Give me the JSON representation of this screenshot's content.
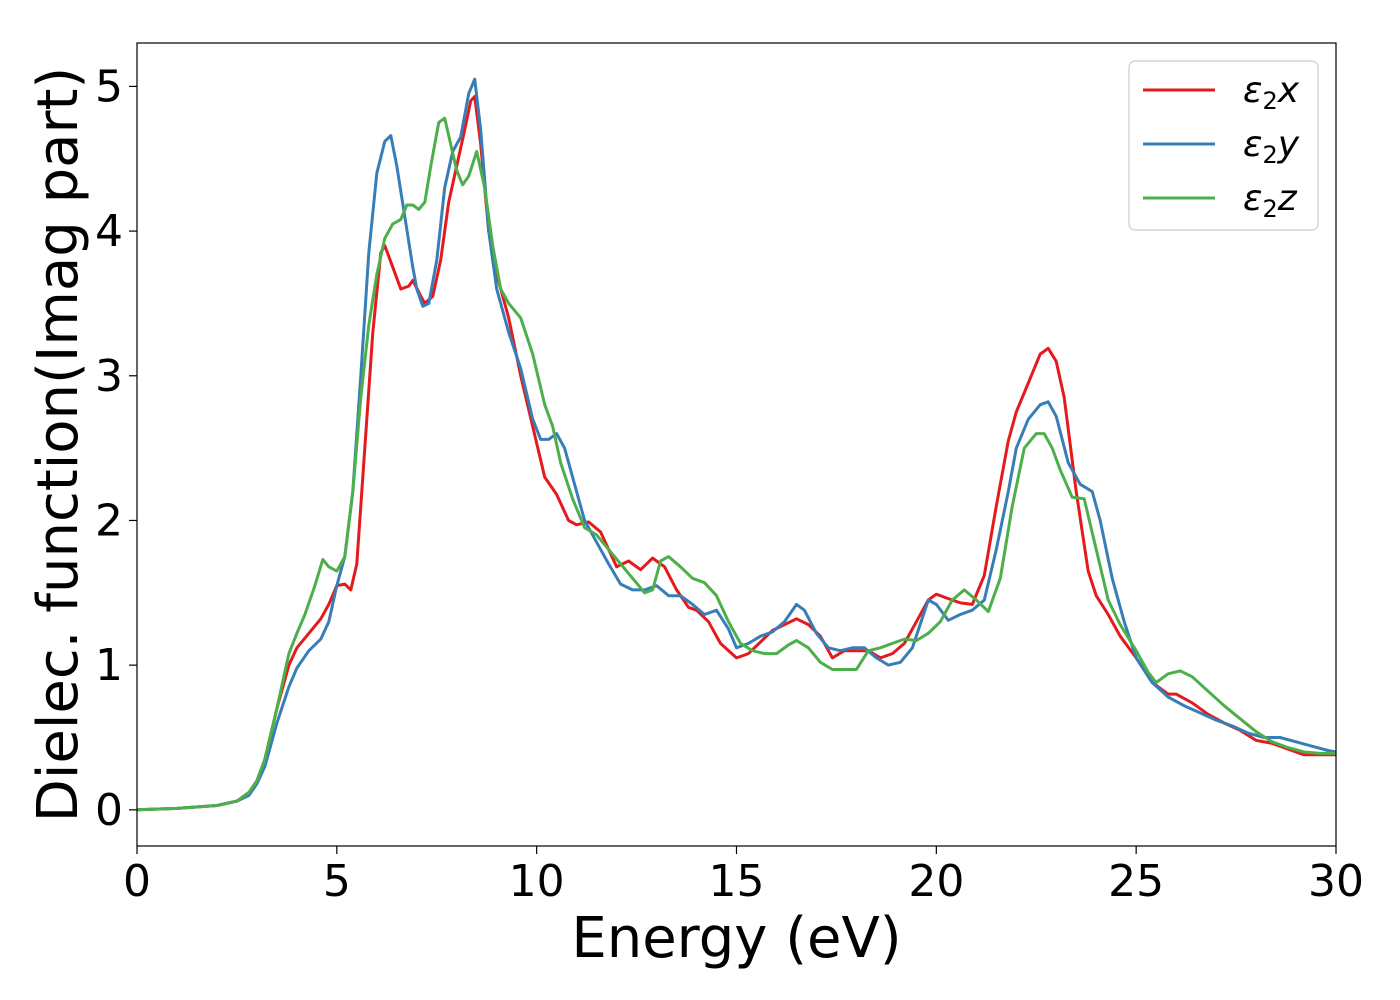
{
  "chart_data": {
    "type": "line",
    "title": "",
    "xlabel": "Energy (eV)",
    "ylabel": "Dielec. function(Imag part)",
    "xlim": [
      0,
      30
    ],
    "ylim": [
      -0.25,
      5.3
    ],
    "xticks": [
      0,
      5,
      10,
      15,
      20,
      25,
      30
    ],
    "xtick_labels": [
      "0",
      "5",
      "10",
      "15",
      "20",
      "25",
      "30"
    ],
    "yticks": [
      0,
      1,
      2,
      3,
      4,
      5
    ],
    "ytick_labels": [
      "0",
      "1",
      "2",
      "3",
      "4",
      "5"
    ],
    "grid": false,
    "legend_position": "top-right",
    "series": [
      {
        "name": "ε2x",
        "legend": {
          "base": "ε",
          "sub": "2",
          "suffix": "x"
        },
        "color": "#e41a1c",
        "x": [
          0,
          1,
          2,
          2.5,
          2.8,
          3,
          3.2,
          3.5,
          3.8,
          4,
          4.3,
          4.6,
          4.8,
          5.0,
          5.2,
          5.35,
          5.5,
          5.7,
          5.9,
          6.1,
          6.2,
          6.4,
          6.6,
          6.8,
          6.9,
          7.1,
          7.2,
          7.4,
          7.6,
          7.8,
          8.0,
          8.2,
          8.35,
          8.45,
          8.6,
          8.8,
          9.0,
          9.3,
          9.6,
          9.9,
          10.2,
          10.5,
          10.8,
          11.0,
          11.3,
          11.6,
          11.8,
          12.0,
          12.3,
          12.6,
          12.9,
          13.2,
          13.5,
          13.8,
          14.0,
          14.3,
          14.6,
          15.0,
          15.3,
          15.6,
          15.9,
          16.2,
          16.5,
          16.8,
          17.1,
          17.4,
          17.7,
          18.0,
          18.3,
          18.6,
          18.9,
          19.2,
          19.5,
          19.8,
          20.0,
          20.3,
          20.6,
          20.9,
          21.2,
          21.5,
          21.8,
          22.0,
          22.3,
          22.6,
          22.8,
          23.0,
          23.2,
          23.5,
          23.8,
          24.0,
          24.3,
          24.6,
          25.0,
          25.4,
          25.8,
          26.0,
          26.4,
          26.8,
          27.2,
          27.6,
          28.0,
          28.4,
          28.8,
          29.2,
          29.6,
          30.0
        ],
        "y": [
          0.0,
          0.01,
          0.03,
          0.06,
          0.12,
          0.2,
          0.35,
          0.7,
          1.0,
          1.12,
          1.22,
          1.32,
          1.42,
          1.55,
          1.56,
          1.52,
          1.7,
          2.5,
          3.3,
          3.85,
          3.9,
          3.75,
          3.6,
          3.62,
          3.66,
          3.55,
          3.5,
          3.55,
          3.8,
          4.2,
          4.45,
          4.7,
          4.9,
          4.93,
          4.6,
          4.0,
          3.7,
          3.4,
          3.0,
          2.65,
          2.3,
          2.18,
          2.0,
          1.97,
          1.99,
          1.92,
          1.8,
          1.68,
          1.72,
          1.66,
          1.74,
          1.68,
          1.52,
          1.4,
          1.38,
          1.3,
          1.15,
          1.05,
          1.08,
          1.16,
          1.24,
          1.28,
          1.32,
          1.28,
          1.2,
          1.05,
          1.1,
          1.1,
          1.1,
          1.05,
          1.08,
          1.15,
          1.3,
          1.45,
          1.49,
          1.46,
          1.43,
          1.42,
          1.62,
          2.1,
          2.55,
          2.75,
          2.95,
          3.15,
          3.19,
          3.1,
          2.85,
          2.2,
          1.65,
          1.48,
          1.35,
          1.2,
          1.05,
          0.88,
          0.8,
          0.8,
          0.74,
          0.66,
          0.6,
          0.55,
          0.48,
          0.46,
          0.42,
          0.38,
          0.38,
          0.38
        ]
      },
      {
        "name": "ε2y",
        "legend": {
          "base": "ε",
          "sub": "2",
          "suffix": "y"
        },
        "color": "#377eb8",
        "x": [
          0,
          1,
          2,
          2.5,
          2.8,
          3,
          3.2,
          3.5,
          3.8,
          4,
          4.3,
          4.6,
          4.8,
          5.0,
          5.2,
          5.4,
          5.6,
          5.8,
          6.0,
          6.2,
          6.35,
          6.5,
          6.7,
          6.9,
          7.0,
          7.15,
          7.3,
          7.5,
          7.7,
          7.9,
          8.1,
          8.3,
          8.45,
          8.6,
          8.8,
          9.0,
          9.3,
          9.6,
          9.9,
          10.1,
          10.3,
          10.5,
          10.7,
          10.9,
          11.2,
          11.5,
          11.8,
          12.1,
          12.4,
          12.7,
          13.0,
          13.3,
          13.6,
          13.9,
          14.2,
          14.5,
          14.8,
          15.0,
          15.3,
          15.6,
          15.9,
          16.2,
          16.5,
          16.7,
          17.0,
          17.3,
          17.6,
          17.9,
          18.2,
          18.5,
          18.8,
          19.1,
          19.4,
          19.8,
          20.0,
          20.3,
          20.6,
          20.9,
          21.2,
          21.5,
          21.8,
          22.0,
          22.3,
          22.6,
          22.8,
          23.0,
          23.3,
          23.6,
          23.9,
          24.1,
          24.4,
          24.7,
          25.0,
          25.4,
          25.8,
          26.2,
          26.6,
          27.0,
          27.4,
          27.8,
          28.2,
          28.6,
          29.0,
          29.4,
          29.8,
          30.0
        ],
        "y": [
          0.0,
          0.01,
          0.03,
          0.06,
          0.1,
          0.18,
          0.3,
          0.6,
          0.85,
          0.98,
          1.1,
          1.18,
          1.3,
          1.55,
          1.75,
          2.2,
          3.0,
          3.85,
          4.4,
          4.62,
          4.66,
          4.45,
          4.1,
          3.75,
          3.6,
          3.48,
          3.5,
          3.8,
          4.3,
          4.55,
          4.65,
          4.95,
          5.05,
          4.7,
          4.0,
          3.6,
          3.3,
          3.05,
          2.7,
          2.56,
          2.56,
          2.6,
          2.5,
          2.3,
          2.0,
          1.85,
          1.7,
          1.56,
          1.52,
          1.52,
          1.55,
          1.48,
          1.48,
          1.42,
          1.35,
          1.38,
          1.25,
          1.12,
          1.15,
          1.2,
          1.23,
          1.3,
          1.42,
          1.38,
          1.22,
          1.12,
          1.1,
          1.12,
          1.12,
          1.05,
          1.0,
          1.02,
          1.12,
          1.45,
          1.42,
          1.31,
          1.35,
          1.38,
          1.45,
          1.8,
          2.2,
          2.5,
          2.7,
          2.8,
          2.82,
          2.72,
          2.4,
          2.25,
          2.2,
          2.0,
          1.6,
          1.3,
          1.05,
          0.88,
          0.78,
          0.72,
          0.67,
          0.62,
          0.58,
          0.53,
          0.5,
          0.5,
          0.47,
          0.44,
          0.41,
          0.4
        ]
      },
      {
        "name": "ε2z",
        "legend": {
          "base": "ε",
          "sub": "2",
          "suffix": "z"
        },
        "color": "#4daf4a",
        "x": [
          0,
          1,
          2,
          2.5,
          2.8,
          3,
          3.2,
          3.5,
          3.8,
          4,
          4.2,
          4.45,
          4.65,
          4.8,
          5.0,
          5.2,
          5.4,
          5.6,
          5.8,
          6.0,
          6.2,
          6.4,
          6.6,
          6.75,
          6.9,
          7.05,
          7.2,
          7.35,
          7.55,
          7.7,
          7.85,
          8.0,
          8.15,
          8.3,
          8.5,
          8.7,
          8.9,
          9.1,
          9.3,
          9.6,
          9.9,
          10.2,
          10.4,
          10.6,
          10.9,
          11.2,
          11.5,
          11.8,
          12.1,
          12.4,
          12.7,
          12.9,
          13.1,
          13.3,
          13.6,
          13.9,
          14.2,
          14.5,
          14.8,
          15.1,
          15.4,
          15.7,
          16.0,
          16.3,
          16.5,
          16.8,
          17.1,
          17.4,
          17.7,
          18.0,
          18.3,
          18.6,
          18.9,
          19.2,
          19.5,
          19.8,
          20.1,
          20.4,
          20.7,
          21.0,
          21.3,
          21.6,
          21.9,
          22.2,
          22.5,
          22.7,
          22.9,
          23.1,
          23.4,
          23.7,
          24.0,
          24.3,
          24.6,
          25.0,
          25.3,
          25.5,
          25.8,
          26.1,
          26.4,
          26.8,
          27.2,
          27.6,
          28.0,
          28.4,
          28.8,
          29.2,
          29.6,
          30.0
        ],
        "y": [
          0.0,
          0.01,
          0.03,
          0.06,
          0.12,
          0.2,
          0.35,
          0.7,
          1.08,
          1.22,
          1.35,
          1.55,
          1.73,
          1.68,
          1.65,
          1.75,
          2.2,
          2.85,
          3.35,
          3.7,
          3.95,
          4.05,
          4.08,
          4.18,
          4.18,
          4.15,
          4.2,
          4.45,
          4.75,
          4.78,
          4.6,
          4.42,
          4.32,
          4.38,
          4.55,
          4.3,
          3.9,
          3.6,
          3.5,
          3.4,
          3.15,
          2.8,
          2.65,
          2.4,
          2.15,
          1.95,
          1.9,
          1.8,
          1.7,
          1.6,
          1.5,
          1.52,
          1.72,
          1.75,
          1.68,
          1.6,
          1.57,
          1.48,
          1.3,
          1.15,
          1.1,
          1.08,
          1.08,
          1.14,
          1.17,
          1.12,
          1.02,
          0.97,
          0.97,
          0.97,
          1.1,
          1.12,
          1.15,
          1.18,
          1.17,
          1.22,
          1.3,
          1.45,
          1.52,
          1.45,
          1.37,
          1.6,
          2.1,
          2.5,
          2.6,
          2.6,
          2.5,
          2.35,
          2.16,
          2.15,
          1.8,
          1.45,
          1.28,
          1.1,
          0.95,
          0.88,
          0.94,
          0.96,
          0.92,
          0.82,
          0.72,
          0.63,
          0.54,
          0.47,
          0.43,
          0.4,
          0.39,
          0.39
        ]
      }
    ]
  }
}
